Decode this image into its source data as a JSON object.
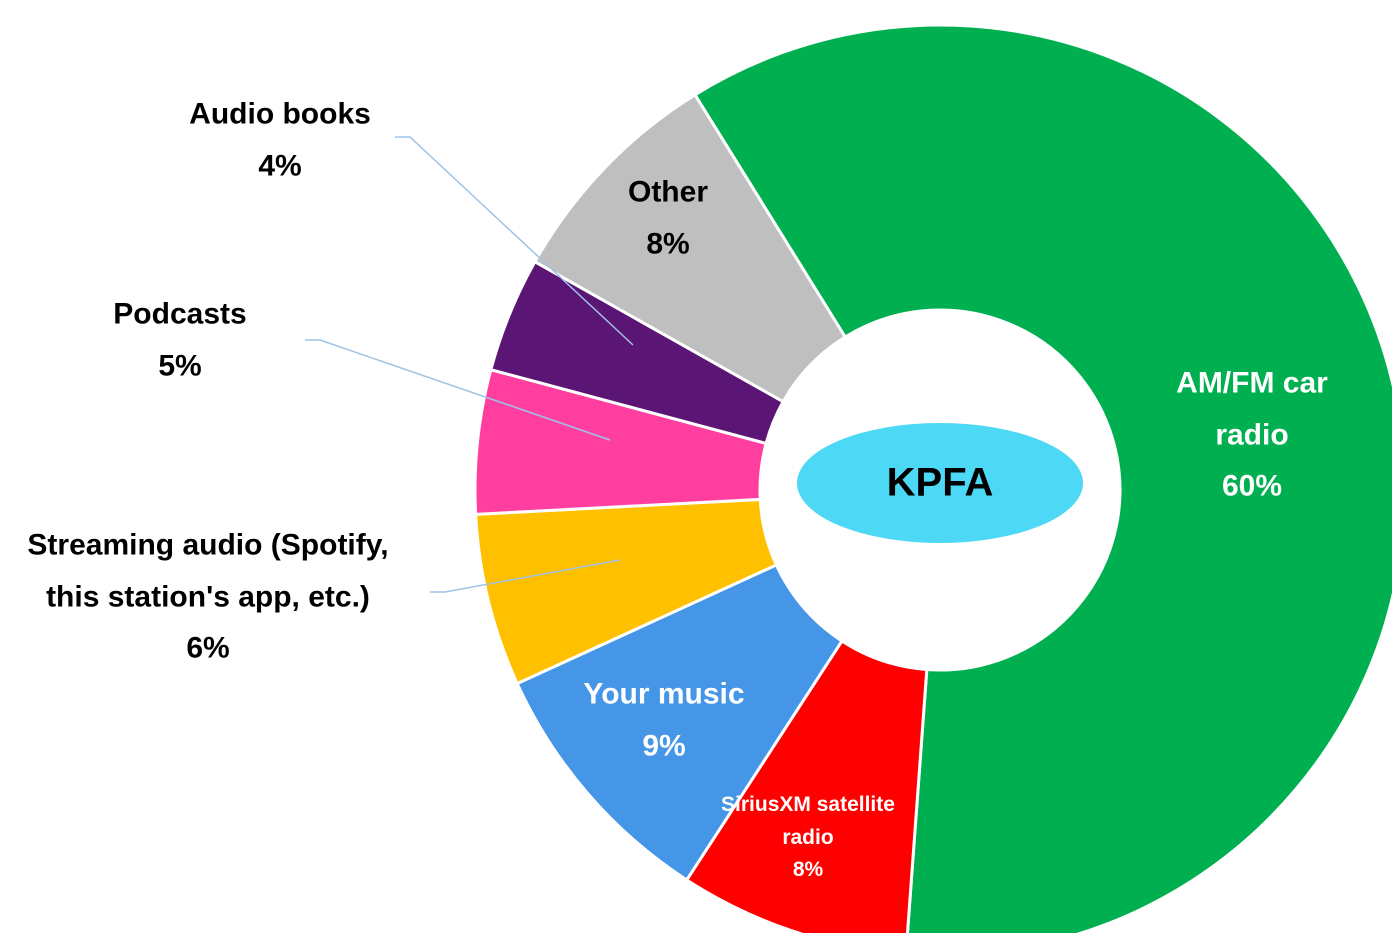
{
  "chart_data": {
    "type": "donut",
    "center_label": "KPFA",
    "categories": [
      "AM/FM car radio",
      "SiriusXM satellite radio",
      "Your music",
      "Streaming audio (Spotify, this station's app, etc.)",
      "Podcasts",
      "Audio books",
      "Other"
    ],
    "values": [
      60,
      8,
      9,
      6,
      5,
      4,
      8
    ],
    "value_labels": [
      "60%",
      "8%",
      "9%",
      "6%",
      "5%",
      "4%",
      "8%"
    ],
    "colors": [
      "#00b050",
      "#ff0000",
      "#4596e6",
      "#ffc000",
      "#ff3ea0",
      "#5b1675",
      "#bfbfbf"
    ]
  }
}
